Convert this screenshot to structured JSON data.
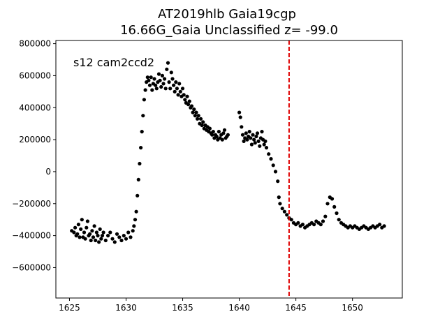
{
  "chart_data": {
    "type": "scatter",
    "title": "AT2019hlb  Gaia19cgp",
    "subtitle": "16.66G_Gaia Unclassified z= -99.0",
    "annotation": "s12 cam2ccd2",
    "xlabel": "",
    "ylabel": "",
    "xlim": [
      1623.8,
      1654.4
    ],
    "ylim": [
      -790000,
      820000
    ],
    "x_ticks": [
      1625,
      1630,
      1635,
      1640,
      1645,
      1650
    ],
    "y_ticks": [
      800000,
      600000,
      400000,
      200000,
      0,
      -200000,
      -400000,
      -600000
    ],
    "x_tick_labels": [
      "1625",
      "1630",
      "1635",
      "1640",
      "1645",
      "1650"
    ],
    "y_tick_labels": [
      "800000",
      "600000",
      "400000",
      "200000",
      "0",
      "−200000",
      "−400000",
      "−600000"
    ],
    "grid": false,
    "vline": {
      "x": 1644.4,
      "color": "#e00000",
      "style": "dashed"
    },
    "marker_color": "#000000",
    "series": [
      {
        "name": "",
        "color": "#000000",
        "points": [
          [
            1625.2,
            -370000
          ],
          [
            1625.4,
            -380000
          ],
          [
            1625.5,
            -350000
          ],
          [
            1625.6,
            -400000
          ],
          [
            1625.7,
            -390000
          ],
          [
            1625.8,
            -330000
          ],
          [
            1625.9,
            -410000
          ],
          [
            1626.0,
            -360000
          ],
          [
            1626.1,
            -300000
          ],
          [
            1626.2,
            -410000
          ],
          [
            1626.3,
            -380000
          ],
          [
            1626.4,
            -420000
          ],
          [
            1626.5,
            -350000
          ],
          [
            1626.6,
            -310000
          ],
          [
            1626.7,
            -400000
          ],
          [
            1626.8,
            -390000
          ],
          [
            1626.9,
            -430000
          ],
          [
            1627.0,
            -370000
          ],
          [
            1627.1,
            -410000
          ],
          [
            1627.2,
            -340000
          ],
          [
            1627.3,
            -430000
          ],
          [
            1627.4,
            -380000
          ],
          [
            1627.5,
            -400000
          ],
          [
            1627.6,
            -440000
          ],
          [
            1627.7,
            -360000
          ],
          [
            1627.8,
            -420000
          ],
          [
            1627.9,
            -400000
          ],
          [
            1628.0,
            -380000
          ],
          [
            1628.2,
            -430000
          ],
          [
            1628.4,
            -400000
          ],
          [
            1628.6,
            -380000
          ],
          [
            1628.8,
            -420000
          ],
          [
            1629.0,
            -440000
          ],
          [
            1629.2,
            -390000
          ],
          [
            1629.4,
            -410000
          ],
          [
            1629.6,
            -430000
          ],
          [
            1629.8,
            -400000
          ],
          [
            1630.0,
            -420000
          ],
          [
            1630.2,
            -380000
          ],
          [
            1630.4,
            -410000
          ],
          [
            1630.6,
            -370000
          ],
          [
            1630.7,
            -340000
          ],
          [
            1630.8,
            -300000
          ],
          [
            1630.9,
            -250000
          ],
          [
            1631.0,
            -150000
          ],
          [
            1631.1,
            -50000
          ],
          [
            1631.2,
            50000
          ],
          [
            1631.3,
            150000
          ],
          [
            1631.4,
            250000
          ],
          [
            1631.5,
            350000
          ],
          [
            1631.6,
            450000
          ],
          [
            1631.7,
            510000
          ],
          [
            1631.8,
            560000
          ],
          [
            1631.9,
            590000
          ],
          [
            1632.0,
            570000
          ],
          [
            1632.1,
            540000
          ],
          [
            1632.2,
            590000
          ],
          [
            1632.3,
            510000
          ],
          [
            1632.4,
            550000
          ],
          [
            1632.5,
            580000
          ],
          [
            1632.6,
            540000
          ],
          [
            1632.7,
            520000
          ],
          [
            1632.8,
            560000
          ],
          [
            1632.9,
            610000
          ],
          [
            1633.0,
            570000
          ],
          [
            1633.1,
            530000
          ],
          [
            1633.2,
            600000
          ],
          [
            1633.3,
            550000
          ],
          [
            1633.4,
            580000
          ],
          [
            1633.5,
            520000
          ],
          [
            1633.6,
            640000
          ],
          [
            1633.7,
            680000
          ],
          [
            1633.8,
            560000
          ],
          [
            1633.9,
            520000
          ],
          [
            1634.0,
            620000
          ],
          [
            1634.1,
            580000
          ],
          [
            1634.2,
            540000
          ],
          [
            1634.3,
            500000
          ],
          [
            1634.4,
            560000
          ],
          [
            1634.5,
            520000
          ],
          [
            1634.6,
            480000
          ],
          [
            1634.7,
            550000
          ],
          [
            1634.8,
            500000
          ],
          [
            1634.9,
            470000
          ],
          [
            1635.0,
            520000
          ],
          [
            1635.1,
            480000
          ],
          [
            1635.2,
            450000
          ],
          [
            1635.3,
            430000
          ],
          [
            1635.4,
            470000
          ],
          [
            1635.5,
            420000
          ],
          [
            1635.6,
            440000
          ],
          [
            1635.7,
            400000
          ],
          [
            1635.8,
            410000
          ],
          [
            1635.9,
            370000
          ],
          [
            1636.0,
            390000
          ],
          [
            1636.1,
            350000
          ],
          [
            1636.2,
            370000
          ],
          [
            1636.3,
            330000
          ],
          [
            1636.4,
            350000
          ],
          [
            1636.5,
            300000
          ],
          [
            1636.6,
            330000
          ],
          [
            1636.7,
            290000
          ],
          [
            1636.8,
            310000
          ],
          [
            1636.9,
            270000
          ],
          [
            1637.0,
            290000
          ],
          [
            1637.1,
            260000
          ],
          [
            1637.2,
            280000
          ],
          [
            1637.3,
            250000
          ],
          [
            1637.4,
            270000
          ],
          [
            1637.5,
            240000
          ],
          [
            1637.6,
            230000
          ],
          [
            1637.7,
            250000
          ],
          [
            1637.8,
            210000
          ],
          [
            1637.9,
            230000
          ],
          [
            1638.0,
            220000
          ],
          [
            1638.1,
            200000
          ],
          [
            1638.2,
            250000
          ],
          [
            1638.3,
            210000
          ],
          [
            1638.4,
            230000
          ],
          [
            1638.5,
            200000
          ],
          [
            1638.6,
            240000
          ],
          [
            1638.7,
            260000
          ],
          [
            1638.8,
            210000
          ],
          [
            1638.9,
            220000
          ],
          [
            1639.0,
            230000
          ],
          [
            1640.0,
            370000
          ],
          [
            1640.1,
            340000
          ],
          [
            1640.2,
            280000
          ],
          [
            1640.3,
            230000
          ],
          [
            1640.4,
            190000
          ],
          [
            1640.5,
            210000
          ],
          [
            1640.6,
            240000
          ],
          [
            1640.7,
            200000
          ],
          [
            1640.8,
            220000
          ],
          [
            1640.9,
            250000
          ],
          [
            1641.0,
            210000
          ],
          [
            1641.1,
            170000
          ],
          [
            1641.2,
            230000
          ],
          [
            1641.3,
            200000
          ],
          [
            1641.4,
            180000
          ],
          [
            1641.5,
            220000
          ],
          [
            1641.6,
            240000
          ],
          [
            1641.7,
            190000
          ],
          [
            1641.8,
            160000
          ],
          [
            1641.9,
            210000
          ],
          [
            1642.0,
            250000
          ],
          [
            1642.1,
            200000
          ],
          [
            1642.2,
            170000
          ],
          [
            1642.3,
            190000
          ],
          [
            1642.4,
            150000
          ],
          [
            1642.6,
            110000
          ],
          [
            1642.8,
            80000
          ],
          [
            1643.0,
            40000
          ],
          [
            1643.2,
            0
          ],
          [
            1643.4,
            -60000
          ],
          [
            1643.5,
            -160000
          ],
          [
            1643.6,
            -200000
          ],
          [
            1643.8,
            -230000
          ],
          [
            1644.0,
            -250000
          ],
          [
            1644.2,
            -270000
          ],
          [
            1644.4,
            -290000
          ],
          [
            1644.6,
            -300000
          ],
          [
            1644.8,
            -320000
          ],
          [
            1645.0,
            -330000
          ],
          [
            1645.2,
            -320000
          ],
          [
            1645.4,
            -340000
          ],
          [
            1645.6,
            -330000
          ],
          [
            1645.8,
            -350000
          ],
          [
            1646.0,
            -340000
          ],
          [
            1646.2,
            -330000
          ],
          [
            1646.4,
            -320000
          ],
          [
            1646.6,
            -330000
          ],
          [
            1646.8,
            -310000
          ],
          [
            1647.0,
            -320000
          ],
          [
            1647.2,
            -330000
          ],
          [
            1647.4,
            -310000
          ],
          [
            1647.6,
            -280000
          ],
          [
            1647.8,
            -200000
          ],
          [
            1648.0,
            -160000
          ],
          [
            1648.2,
            -170000
          ],
          [
            1648.4,
            -220000
          ],
          [
            1648.6,
            -260000
          ],
          [
            1648.8,
            -300000
          ],
          [
            1649.0,
            -320000
          ],
          [
            1649.2,
            -330000
          ],
          [
            1649.4,
            -340000
          ],
          [
            1649.6,
            -350000
          ],
          [
            1649.8,
            -340000
          ],
          [
            1650.0,
            -350000
          ],
          [
            1650.2,
            -340000
          ],
          [
            1650.4,
            -350000
          ],
          [
            1650.6,
            -360000
          ],
          [
            1650.8,
            -350000
          ],
          [
            1651.0,
            -340000
          ],
          [
            1651.2,
            -350000
          ],
          [
            1651.4,
            -360000
          ],
          [
            1651.6,
            -350000
          ],
          [
            1651.8,
            -340000
          ],
          [
            1652.0,
            -350000
          ],
          [
            1652.2,
            -340000
          ],
          [
            1652.4,
            -330000
          ],
          [
            1652.6,
            -350000
          ],
          [
            1652.8,
            -340000
          ]
        ]
      }
    ]
  }
}
